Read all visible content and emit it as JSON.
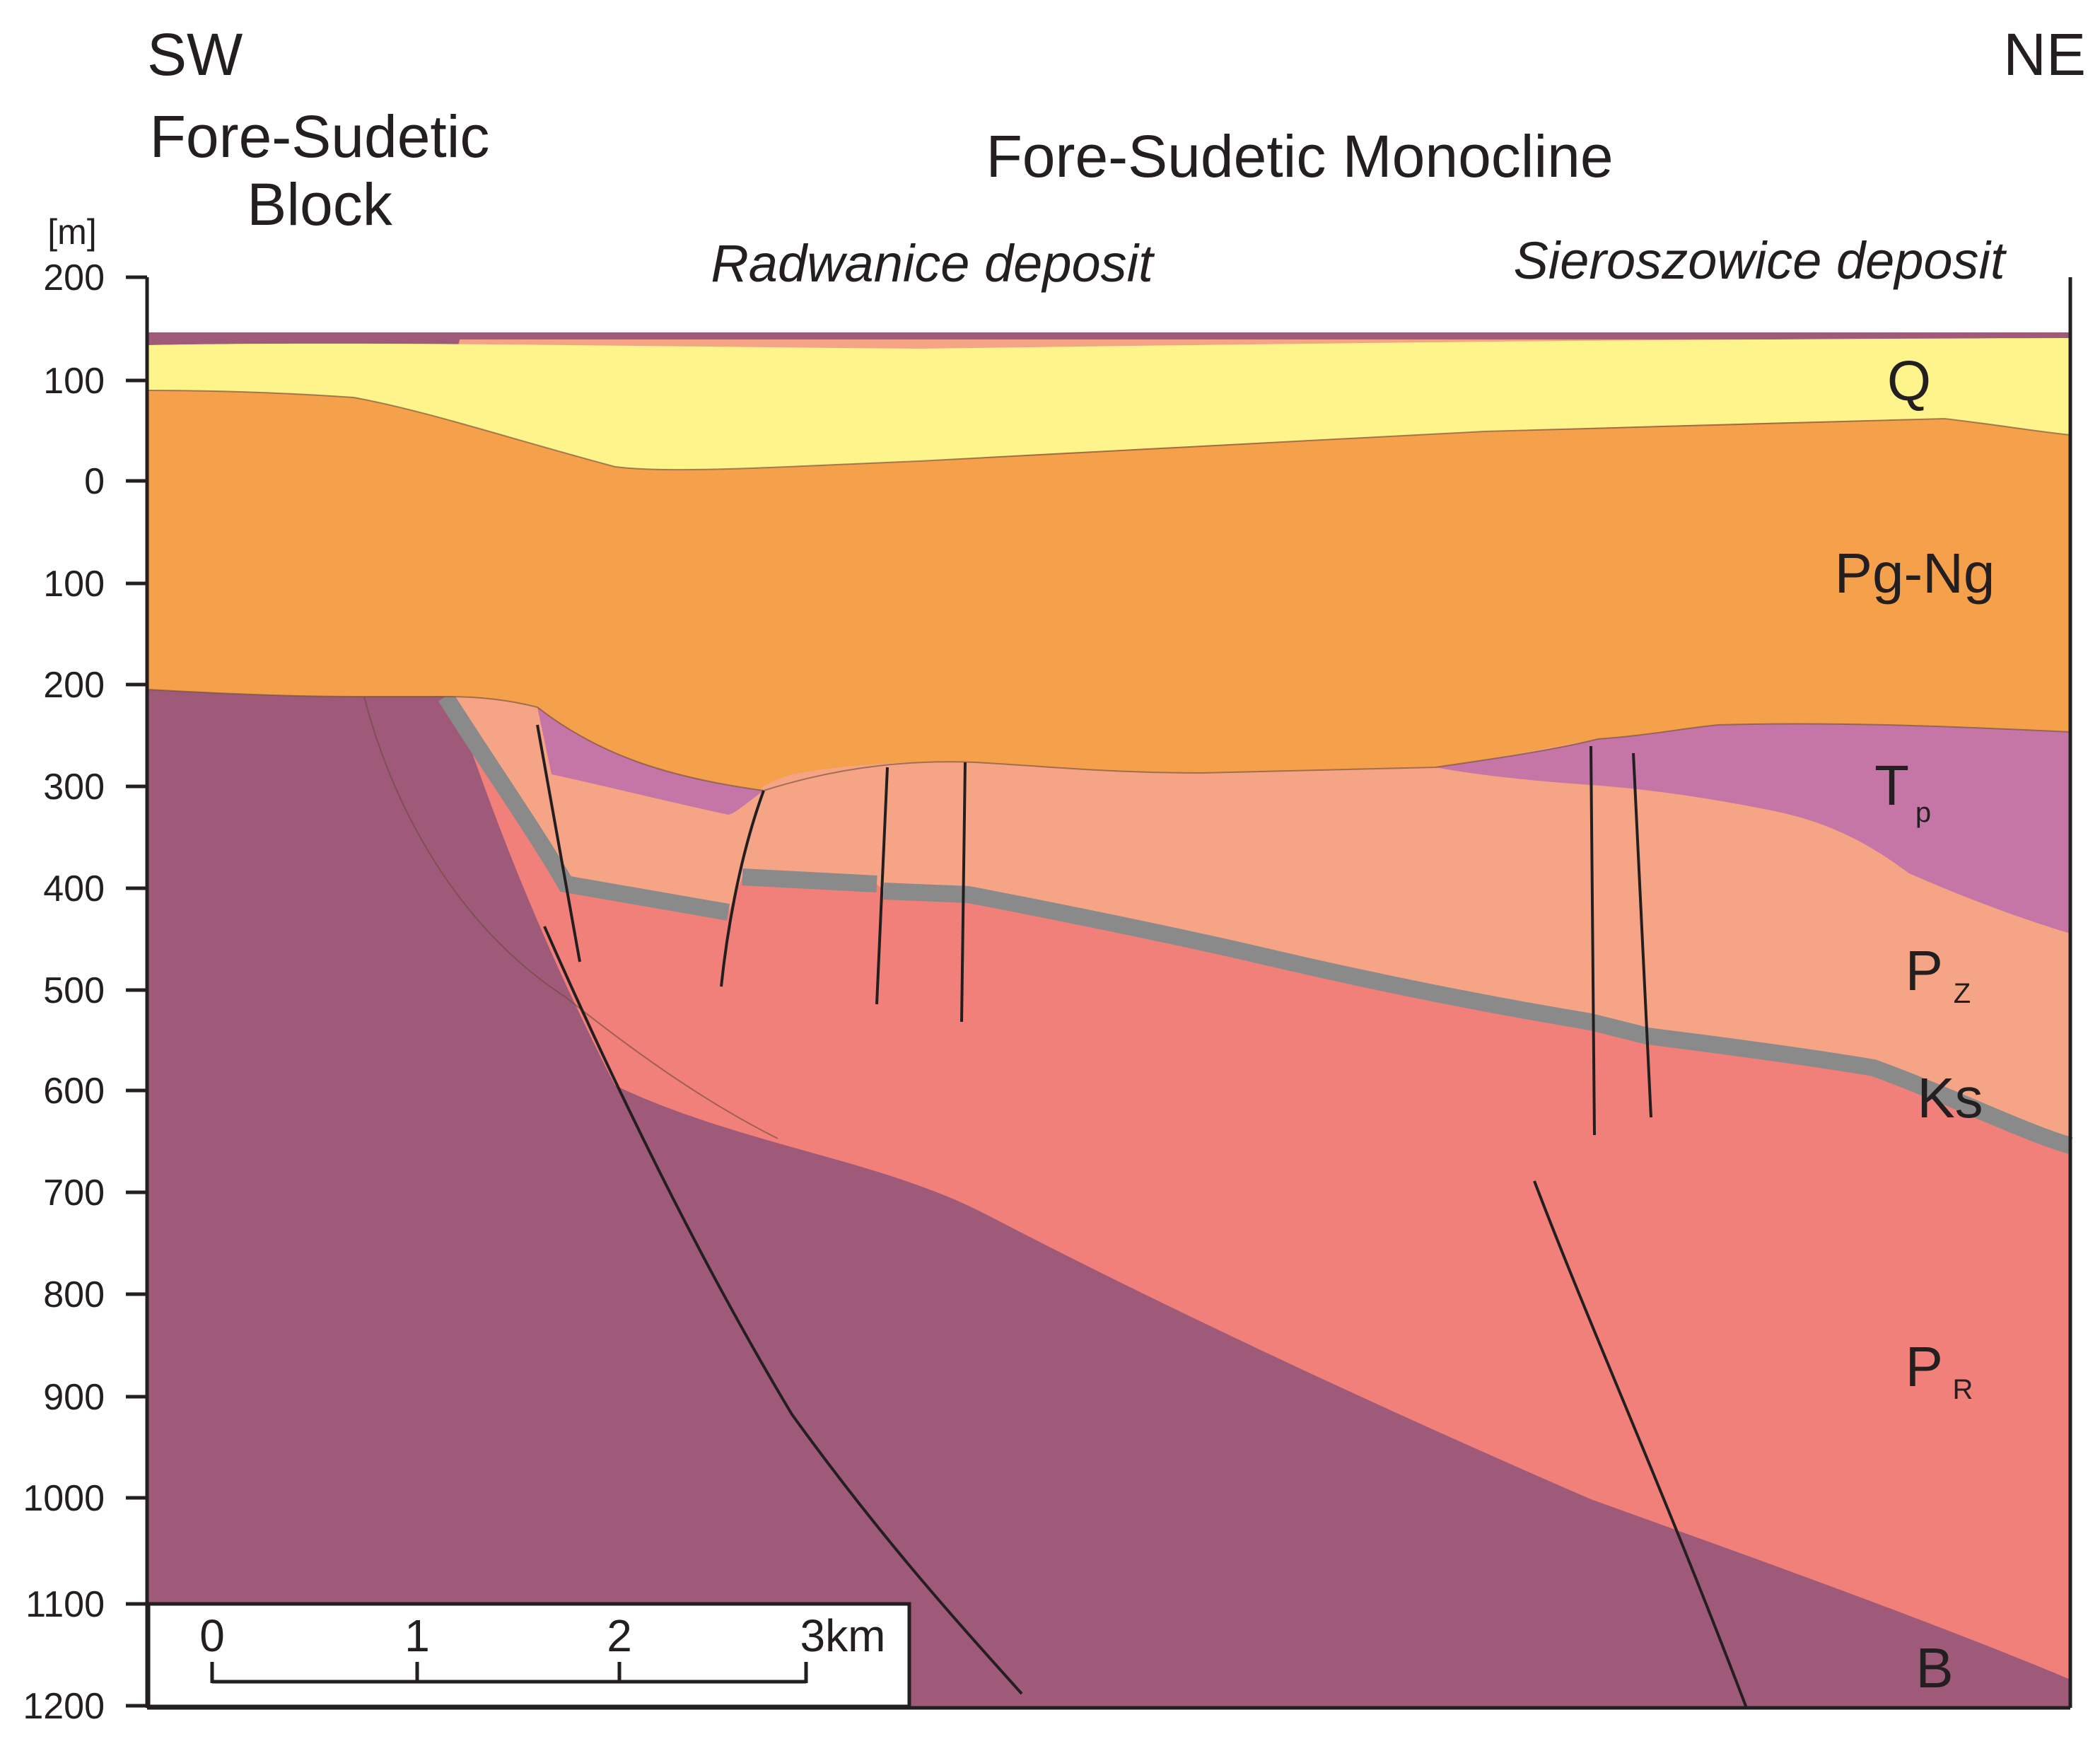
{
  "header": {
    "left_direction": "SW",
    "right_direction": "NE",
    "block_line1": "Fore-Sudetic",
    "block_line2": "Block",
    "monocline": "Fore-Sudetic Monocline"
  },
  "deposits": [
    {
      "label": "Radwanice deposit"
    },
    {
      "label": "Sieroszowice deposit"
    }
  ],
  "axis": {
    "unit": "[m]",
    "ticks": [
      "200",
      "100",
      "0",
      "100",
      "200",
      "300",
      "400",
      "500",
      "600",
      "700",
      "800",
      "900",
      "1000",
      "1100",
      "1200"
    ]
  },
  "layers": {
    "Q": {
      "label": "Q",
      "sub": "",
      "color": "#fdf48c"
    },
    "PgNg": {
      "label": "Pg-Ng",
      "sub": "",
      "color": "#f5a14b"
    },
    "Tp": {
      "label": "T",
      "sub": "p",
      "color": "#c675a7"
    },
    "Pz": {
      "label": "P",
      "sub": "Z",
      "color": "#f5a585"
    },
    "Ks": {
      "label": "Ks",
      "sub": "",
      "color": "#8a8a8a"
    },
    "Pr": {
      "label": "P",
      "sub": "R",
      "color": "#f08079"
    },
    "B": {
      "label": "B",
      "sub": "",
      "color": "#9f5a79"
    }
  },
  "scale_bar": {
    "labels": [
      "0",
      "1",
      "2",
      "3km"
    ]
  }
}
